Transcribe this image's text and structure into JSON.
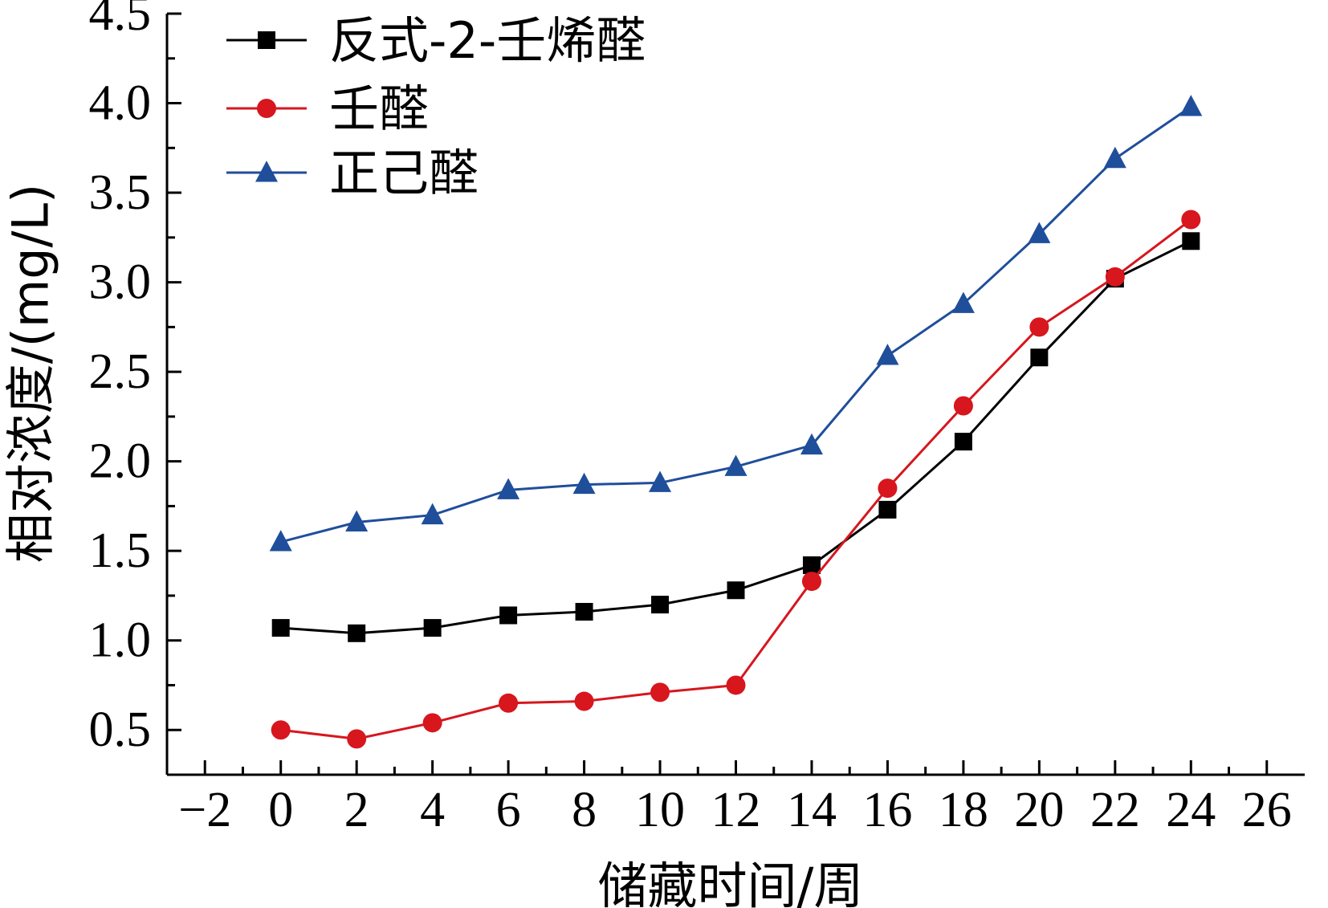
{
  "chart_data": {
    "type": "line",
    "title": "",
    "xlabel": "储藏时间/周",
    "ylabel": "相对浓度/(mg/L)",
    "xlim": [
      -3,
      27
    ],
    "ylim": [
      0.25,
      4.5
    ],
    "xticks": [
      -2,
      0,
      2,
      4,
      6,
      8,
      10,
      12,
      14,
      16,
      18,
      20,
      22,
      24,
      26
    ],
    "xtick_labels": [
      "−2",
      "0",
      "2",
      "4",
      "6",
      "8",
      "10",
      "12",
      "14",
      "16",
      "18",
      "20",
      "22",
      "24",
      "26"
    ],
    "yticks": [
      0.5,
      1.0,
      1.5,
      2.0,
      2.5,
      3.0,
      3.5,
      4.0,
      4.5
    ],
    "ytick_labels": [
      "0.5",
      "1.0",
      "1.5",
      "2.0",
      "2.5",
      "3.0",
      "3.5",
      "4.0",
      "4.5"
    ],
    "grid": false,
    "legend_position": "top-left",
    "x": [
      0,
      2,
      4,
      6,
      8,
      10,
      12,
      14,
      16,
      18,
      20,
      22,
      24
    ],
    "series": [
      {
        "name": "反式-2-壬烯醛",
        "marker": "square",
        "color": "#000000",
        "values": [
          1.07,
          1.04,
          1.07,
          1.14,
          1.16,
          1.2,
          1.28,
          1.42,
          1.73,
          2.11,
          2.58,
          3.02,
          3.23
        ]
      },
      {
        "name": "壬醛",
        "marker": "circle",
        "color": "#d7161e",
        "values": [
          0.5,
          0.45,
          0.54,
          0.65,
          0.66,
          0.71,
          0.75,
          1.33,
          1.85,
          2.31,
          2.75,
          3.03,
          3.35
        ]
      },
      {
        "name": "正己醛",
        "marker": "triangle",
        "color": "#1f4e9b",
        "values": [
          1.55,
          1.66,
          1.7,
          1.84,
          1.87,
          1.88,
          1.97,
          2.09,
          2.59,
          2.88,
          3.27,
          3.69,
          3.98
        ]
      }
    ]
  }
}
